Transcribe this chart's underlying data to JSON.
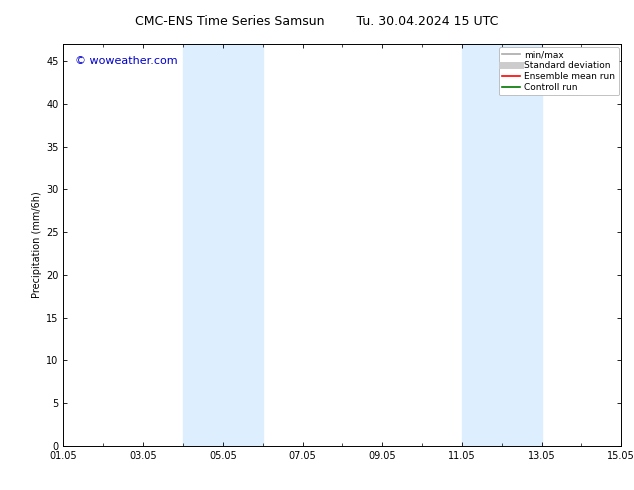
{
  "title_left": "CMC-ENS Time Series Samsun",
  "title_right": "Tu. 30.04.2024 15 UTC",
  "ylabel": "Precipitation (mm/6h)",
  "bg_color": "#ffffff",
  "plot_bg_color": "#ffffff",
  "xlim_start": 0,
  "xlim_end": 14,
  "ylim": [
    0,
    47
  ],
  "yticks": [
    0,
    5,
    10,
    15,
    20,
    25,
    30,
    35,
    40,
    45
  ],
  "xtick_labels": [
    "01.05",
    "03.05",
    "05.05",
    "07.05",
    "09.05",
    "11.05",
    "13.05",
    "15.05"
  ],
  "xtick_positions": [
    0,
    2,
    4,
    6,
    8,
    10,
    12,
    14
  ],
  "shaded_bands": [
    {
      "x_start": 3.0,
      "x_end": 5.0
    },
    {
      "x_start": 10.0,
      "x_end": 12.0
    }
  ],
  "shaded_color": "#ddeeff",
  "watermark": "© woweather.com",
  "watermark_color": "#0000cc",
  "legend_items": [
    {
      "label": "min/max",
      "color": "#aaaaaa",
      "lw": 1.2,
      "style": "solid"
    },
    {
      "label": "Standard deviation",
      "color": "#cccccc",
      "lw": 5,
      "style": "solid"
    },
    {
      "label": "Ensemble mean run",
      "color": "#ff0000",
      "lw": 1.2,
      "style": "solid"
    },
    {
      "label": "Controll run",
      "color": "#007700",
      "lw": 1.2,
      "style": "solid"
    }
  ],
  "tick_color": "#000000",
  "spine_color": "#000000",
  "title_fontsize": 9,
  "label_fontsize": 7,
  "tick_fontsize": 7,
  "watermark_fontsize": 8,
  "legend_fontsize": 6.5
}
